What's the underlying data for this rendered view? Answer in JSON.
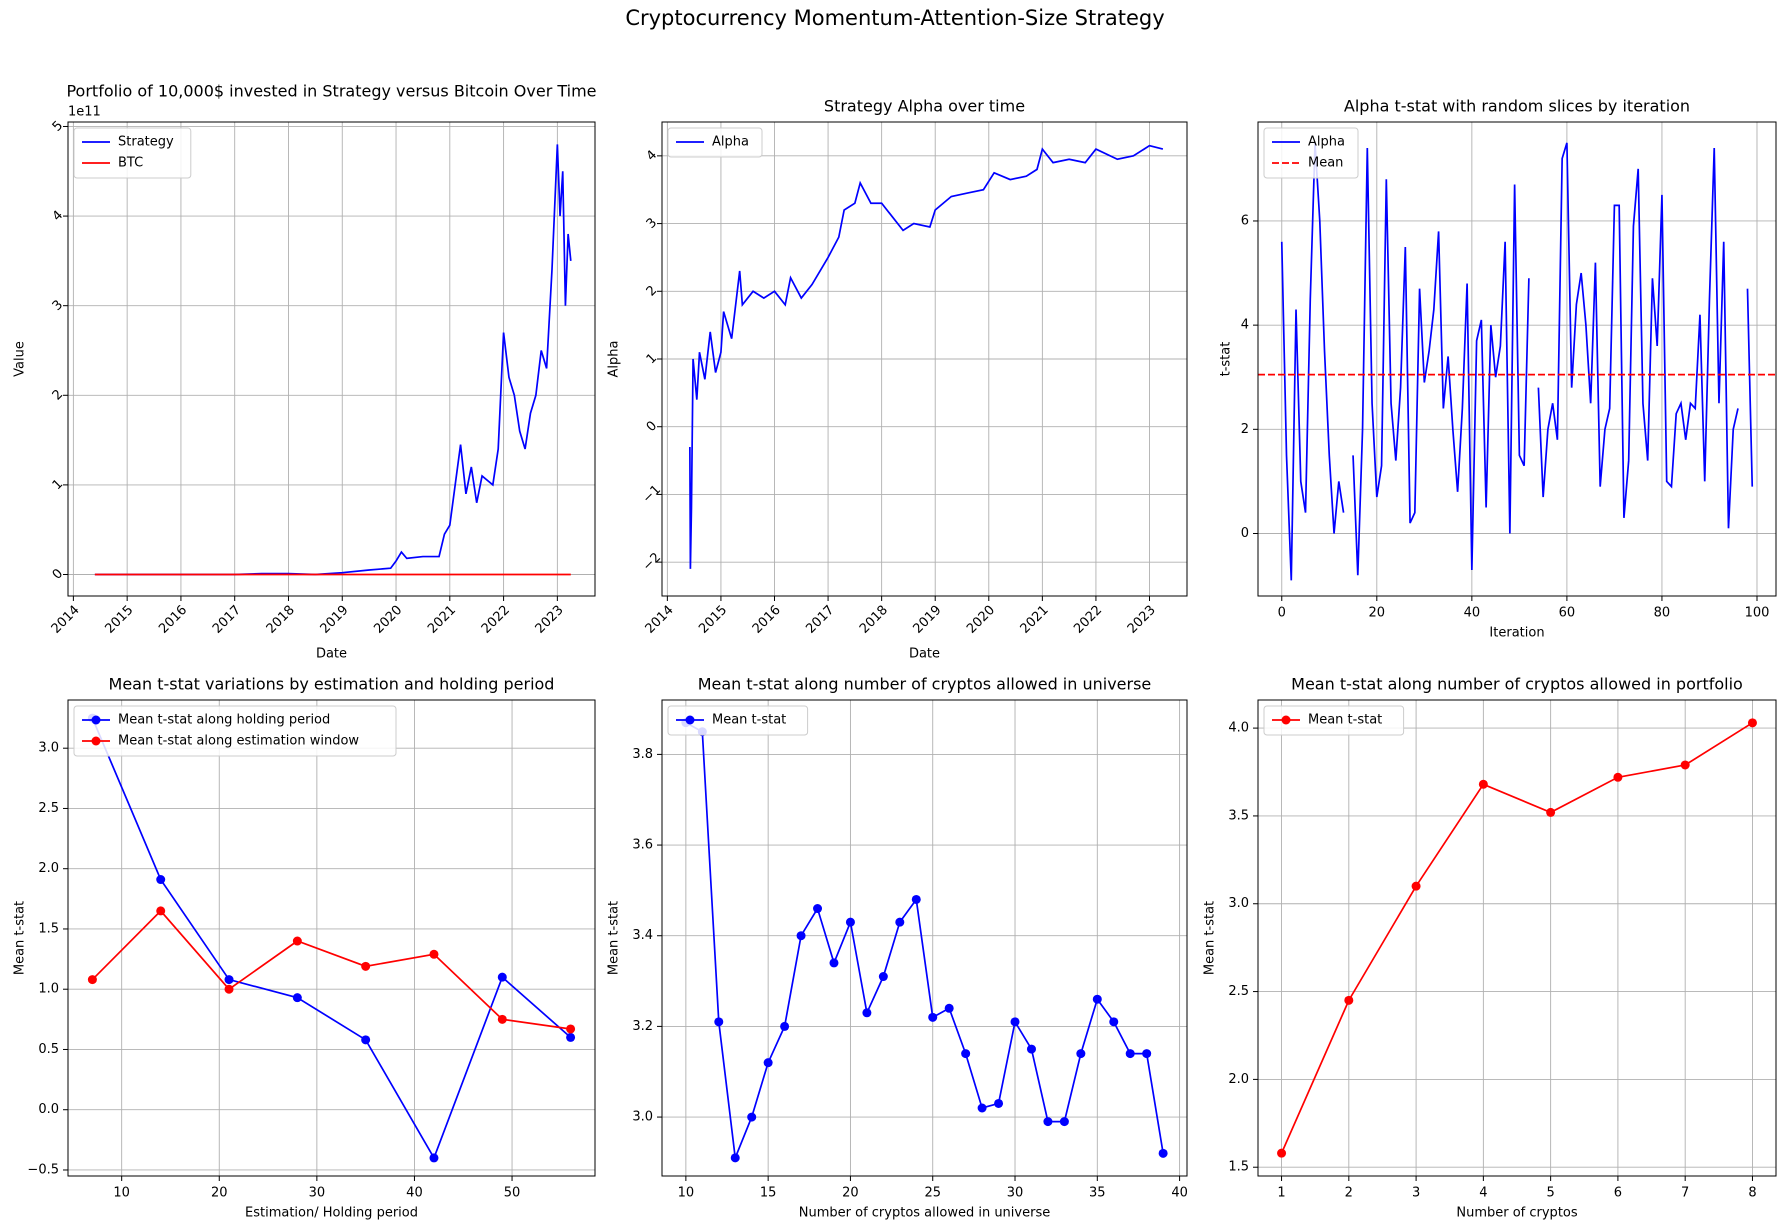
{
  "suptitle": "Cryptocurrency Momentum-Attention-Size Strategy",
  "chart_data": [
    {
      "type": "line",
      "title": "Portfolio of 10,000$ invested in Strategy versus Bitcoin Over Time",
      "x_label": "Date",
      "y_label": "Value",
      "y_offset_label": "1e11",
      "xlim": [
        2013.9,
        2023.7
      ],
      "xticks": [
        2014,
        2015,
        2016,
        2017,
        2018,
        2019,
        2020,
        2021,
        2022,
        2023
      ],
      "ylim": [
        -0.24,
        5.05
      ],
      "yticks": [
        0,
        1,
        2,
        3,
        4,
        5
      ],
      "grid": true,
      "legend": "upper left",
      "tick_rotation": 45,
      "x": [
        2014.4,
        2015,
        2016,
        2017,
        2017.5,
        2018,
        2018.5,
        2019,
        2019.5,
        2019.9,
        2020.0,
        2020.1,
        2020.2,
        2020.5,
        2020.8,
        2020.9,
        2021.0,
        2021.1,
        2021.2,
        2021.3,
        2021.4,
        2021.5,
        2021.6,
        2021.8,
        2021.9,
        2022.0,
        2022.1,
        2022.2,
        2022.3,
        2022.4,
        2022.5,
        2022.6,
        2022.7,
        2022.8,
        2022.9,
        2023.0,
        2023.05,
        2023.1,
        2023.15,
        2023.2,
        2023.25
      ],
      "series": [
        {
          "name": "Strategy",
          "color": "#0000ff",
          "values": [
            0,
            0,
            0,
            0,
            0.01,
            0.01,
            0,
            0.02,
            0.05,
            0.07,
            0.15,
            0.25,
            0.18,
            0.2,
            0.2,
            0.45,
            0.55,
            1.0,
            1.45,
            0.9,
            1.2,
            0.8,
            1.1,
            1.0,
            1.4,
            2.7,
            2.2,
            2.0,
            1.6,
            1.4,
            1.8,
            2.0,
            2.5,
            2.3,
            3.4,
            4.8,
            4.0,
            4.5,
            3.0,
            3.8,
            3.5
          ]
        },
        {
          "name": "BTC",
          "color": "#ff0000",
          "values": [
            0,
            0,
            0,
            0,
            0,
            0,
            0,
            0,
            0,
            0,
            0,
            0,
            0,
            0,
            0,
            0,
            0,
            0,
            0,
            0,
            0,
            0,
            0,
            0,
            0,
            0,
            0,
            0,
            0,
            0,
            0,
            0,
            0,
            0,
            0,
            0,
            0,
            0,
            0,
            0,
            0
          ]
        }
      ]
    },
    {
      "type": "line",
      "title": "Strategy Alpha over time",
      "x_label": "Date",
      "y_label": "Alpha",
      "xlim": [
        2013.9,
        2023.7
      ],
      "xticks": [
        2014,
        2015,
        2016,
        2017,
        2018,
        2019,
        2020,
        2021,
        2022,
        2023
      ],
      "ylim": [
        -2.5,
        4.5
      ],
      "yticks": [
        {
          "value": -2,
          "label": "−2"
        },
        {
          "value": -1,
          "label": "−1"
        },
        0,
        1,
        2,
        3,
        4
      ],
      "grid": true,
      "legend": "upper left",
      "tick_rotation": 45,
      "x": [
        2014.42,
        2014.43,
        2014.45,
        2014.48,
        2014.55,
        2014.6,
        2014.7,
        2014.8,
        2014.9,
        2015.0,
        2015.05,
        2015.2,
        2015.35,
        2015.4,
        2015.6,
        2015.8,
        2016.0,
        2016.2,
        2016.3,
        2016.5,
        2016.7,
        2017.0,
        2017.2,
        2017.3,
        2017.5,
        2017.6,
        2017.8,
        2018.0,
        2018.2,
        2018.4,
        2018.6,
        2018.9,
        2019.0,
        2019.3,
        2019.6,
        2019.9,
        2020.1,
        2020.4,
        2020.7,
        2020.9,
        2021.0,
        2021.2,
        2021.5,
        2021.8,
        2022.0,
        2022.4,
        2022.7,
        2023.0,
        2023.25
      ],
      "series": [
        {
          "name": "Alpha",
          "color": "#0000ff",
          "values": [
            -0.3,
            -2.1,
            -1.2,
            1.0,
            0.4,
            1.1,
            0.7,
            1.4,
            0.8,
            1.1,
            1.7,
            1.3,
            2.3,
            1.8,
            2.0,
            1.9,
            2.0,
            1.8,
            2.2,
            1.9,
            2.1,
            2.5,
            2.8,
            3.2,
            3.3,
            3.6,
            3.3,
            3.3,
            3.1,
            2.9,
            3.0,
            2.95,
            3.2,
            3.4,
            3.45,
            3.5,
            3.75,
            3.65,
            3.7,
            3.8,
            4.1,
            3.9,
            3.95,
            3.9,
            4.1,
            3.95,
            4.0,
            4.15,
            4.1
          ]
        }
      ]
    },
    {
      "type": "line",
      "title": "Alpha t-stat with random slices by iteration",
      "x_label": "Iteration",
      "y_label": "t-stat",
      "xlim": [
        -5,
        104
      ],
      "xticks": [
        0,
        20,
        40,
        60,
        80,
        100
      ],
      "ylim": [
        -1.2,
        7.9
      ],
      "yticks": [
        0,
        2,
        4,
        6
      ],
      "grid": true,
      "legend": "upper left",
      "x": [
        0,
        1,
        2,
        3,
        4,
        5,
        6,
        7,
        8,
        9,
        10,
        11,
        12,
        13,
        14,
        15,
        16,
        17,
        18,
        19,
        20,
        21,
        22,
        23,
        24,
        25,
        26,
        27,
        28,
        29,
        30,
        31,
        32,
        33,
        34,
        35,
        36,
        37,
        38,
        39,
        40,
        41,
        42,
        43,
        44,
        45,
        46,
        47,
        48,
        49,
        50,
        51,
        52,
        53,
        54,
        55,
        56,
        57,
        58,
        59,
        60,
        61,
        62,
        63,
        64,
        65,
        66,
        67,
        68,
        69,
        70,
        71,
        72,
        73,
        74,
        75,
        76,
        77,
        78,
        79,
        80,
        81,
        82,
        83,
        84,
        85,
        86,
        87,
        88,
        89,
        90,
        91,
        92,
        93,
        94,
        95,
        96,
        97,
        98,
        99
      ],
      "series": [
        {
          "name": "Alpha",
          "color": "#0000ff",
          "values": [
            5.6,
            1.5,
            -0.9,
            4.3,
            1.0,
            0.4,
            4.5,
            7.5,
            6.0,
            3.5,
            1.5,
            0.0,
            1.0,
            0.4,
            null,
            1.5,
            -0.8,
            2.0,
            7.4,
            2.5,
            0.7,
            1.3,
            6.8,
            2.5,
            1.4,
            2.8,
            5.5,
            0.2,
            0.4,
            4.7,
            2.9,
            3.5,
            4.3,
            5.8,
            2.4,
            3.4,
            2.0,
            0.8,
            2.4,
            4.8,
            -0.7,
            3.7,
            4.1,
            0.5,
            4.0,
            3.0,
            3.6,
            5.6,
            0.0,
            6.7,
            1.5,
            1.3,
            4.9,
            null,
            2.8,
            0.7,
            2.0,
            2.5,
            1.8,
            7.2,
            7.5,
            2.8,
            4.4,
            5.0,
            4.0,
            2.5,
            5.2,
            0.9,
            2.0,
            2.4,
            6.3,
            6.3,
            0.3,
            1.4,
            5.9,
            7.0,
            2.5,
            1.4,
            4.9,
            3.6,
            6.5,
            1.0,
            0.9,
            2.3,
            2.5,
            1.8,
            2.5,
            2.4,
            4.2,
            1.0,
            4.5,
            7.4,
            2.5,
            5.6,
            0.1,
            2.0,
            2.4,
            null,
            4.7,
            0.9
          ]
        }
      ],
      "hline": {
        "name": "Mean",
        "value": 3.05,
        "color": "#ff0000",
        "linestyle": "dashed"
      }
    },
    {
      "type": "line",
      "title": "Mean t-stat variations by estimation and holding period",
      "x_label": "Estimation/ Holding period",
      "y_label": "Mean t-stat",
      "xlim": [
        4.5,
        58.5
      ],
      "xticks": [
        10,
        20,
        30,
        40,
        50
      ],
      "ylim": [
        -0.55,
        3.4
      ],
      "yticks": [
        {
          "value": -0.5,
          "label": "−0.5"
        },
        {
          "value": 0,
          "label": "0.0"
        },
        0.5,
        {
          "value": 1,
          "label": "1.0"
        },
        1.5,
        {
          "value": 2,
          "label": "2.0"
        },
        2.5,
        {
          "value": 3,
          "label": "3.0"
        }
      ],
      "grid": true,
      "legend": "upper left",
      "marker": "o",
      "x": [
        7,
        14,
        21,
        28,
        35,
        42,
        49,
        56
      ],
      "series": [
        {
          "name": "Mean t-stat along holding period",
          "color": "#0000ff",
          "values": [
            3.25,
            1.91,
            1.08,
            0.93,
            0.58,
            -0.4,
            1.1,
            0.6
          ]
        },
        {
          "name": "Mean t-stat along estimation window",
          "color": "#ff0000",
          "values": [
            1.08,
            1.65,
            1.0,
            1.4,
            1.19,
            1.29,
            0.75,
            0.67
          ]
        }
      ]
    },
    {
      "type": "line",
      "title": "Mean t-stat along number of cryptos allowed in universe",
      "x_label": "Number of cryptos allowed in universe",
      "y_label": "Mean t-stat",
      "xlim": [
        8.55,
        40.45
      ],
      "xticks": [
        10,
        15,
        20,
        25,
        30,
        35,
        40
      ],
      "ylim": [
        2.87,
        3.92
      ],
      "yticks": [
        {
          "value": 3,
          "label": "3.0"
        },
        3.2,
        3.4,
        3.6,
        3.8
      ],
      "grid": true,
      "legend": "upper left",
      "marker": "o",
      "x": [
        10,
        11,
        12,
        13,
        14,
        15,
        16,
        17,
        18,
        19,
        20,
        21,
        22,
        23,
        24,
        25,
        26,
        27,
        28,
        29,
        30,
        31,
        32,
        33,
        34,
        35,
        36,
        37,
        38,
        39
      ],
      "series": [
        {
          "name": "Mean t-stat",
          "color": "#0000ff",
          "values": [
            3.87,
            3.85,
            3.21,
            2.91,
            3.0,
            3.12,
            3.2,
            3.4,
            3.46,
            3.34,
            3.43,
            3.23,
            3.31,
            3.43,
            3.48,
            3.22,
            3.24,
            3.14,
            3.02,
            3.03,
            3.21,
            3.15,
            2.99,
            2.99,
            3.14,
            3.26,
            3.21,
            3.14,
            3.14,
            2.92
          ]
        }
      ]
    },
    {
      "type": "line",
      "title": "Mean t-stat along number of cryptos allowed in portfolio",
      "x_label": "Number of cryptos",
      "y_label": "Mean t-stat",
      "xlim": [
        0.65,
        8.35
      ],
      "xticks": [
        1,
        2,
        3,
        4,
        5,
        6,
        7,
        8
      ],
      "ylim": [
        1.45,
        4.16
      ],
      "yticks": [
        1.5,
        {
          "value": 2,
          "label": "2.0"
        },
        2.5,
        {
          "value": 3,
          "label": "3.0"
        },
        3.5,
        {
          "value": 4,
          "label": "4.0"
        }
      ],
      "grid": true,
      "legend": "upper left",
      "marker": "o",
      "x": [
        1,
        2,
        3,
        4,
        5,
        6,
        7,
        8
      ],
      "series": [
        {
          "name": "Mean t-stat",
          "color": "#ff0000",
          "values": [
            1.58,
            2.45,
            3.1,
            3.68,
            3.52,
            3.72,
            3.79,
            4.03
          ]
        }
      ]
    }
  ]
}
